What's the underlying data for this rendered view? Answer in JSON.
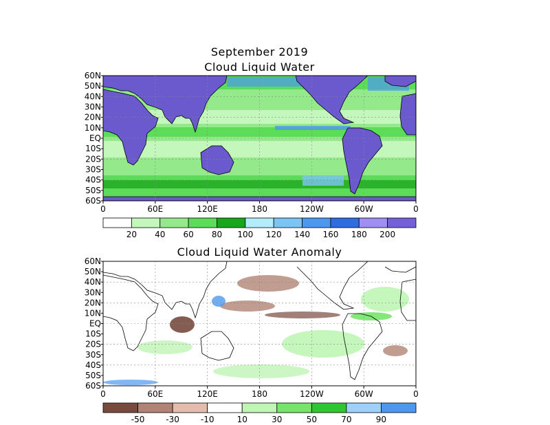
{
  "header": {
    "title": "September 2019",
    "top_map_title": "Cloud Liquid Water",
    "bottom_map_title": "Cloud Liquid Water Anomaly"
  },
  "lat_labels": [
    "60N",
    "50N",
    "40N",
    "30N",
    "20N",
    "10N",
    "EQ",
    "10S",
    "20S",
    "30S",
    "40S",
    "50S",
    "60S"
  ],
  "lon_labels": [
    "0",
    "60E",
    "120E",
    "180",
    "120W",
    "60W",
    "0"
  ],
  "top_colorbar": {
    "colors": [
      "#ffffff",
      "#c4f7bc",
      "#94ea8a",
      "#5ddc5a",
      "#1aa61b",
      "#b3ecfa",
      "#7cc4f3",
      "#4d98ee",
      "#2f6ce0",
      "#a08ff2",
      "#7660d8"
    ],
    "labels": [
      "20",
      "40",
      "60",
      "80",
      "100",
      "120",
      "140",
      "160",
      "180",
      "200"
    ]
  },
  "bottom_colorbar": {
    "colors": [
      "#784a3e",
      "#b08376",
      "#e3bcae",
      "#ffffff",
      "#bff5b5",
      "#76e56a",
      "#33c433",
      "#9fd0fb",
      "#4d98ee"
    ],
    "labels": [
      "-50",
      "-30",
      "-10",
      "10",
      "30",
      "50",
      "70",
      "90"
    ]
  },
  "colors": {
    "land": "#6a5acd",
    "ocean_low": "#a8eca0",
    "ocean_mid": "#4fd84a",
    "ocean_high": "#1b9c1b",
    "anom_neg": "#b08376",
    "anom_pos": "#5ddc5a"
  }
}
